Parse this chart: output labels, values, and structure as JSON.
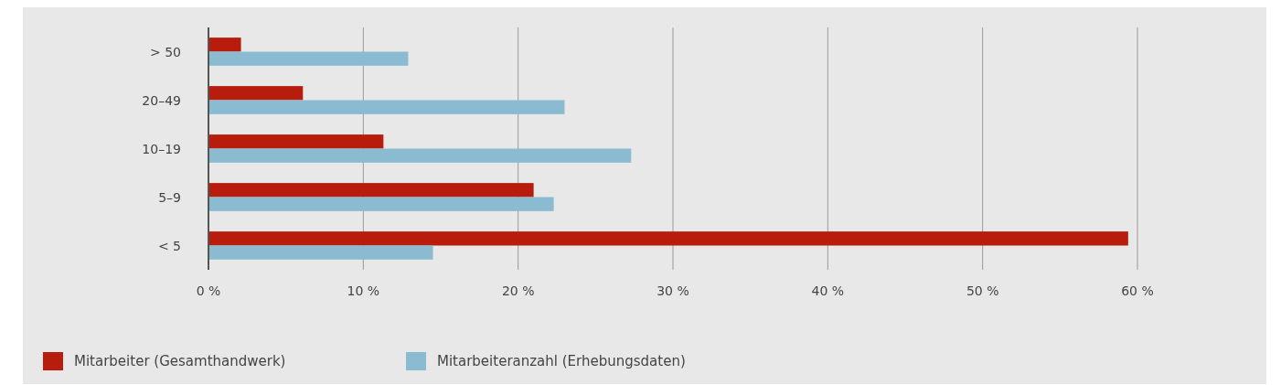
{
  "chart_data": {
    "type": "bar",
    "orientation": "horizontal",
    "categories": [
      "> 50",
      "20–49",
      "10–19",
      "5–9",
      "< 5"
    ],
    "series": [
      {
        "name": "Mitarbeiter (Gesamthandwerk)",
        "color": "#b71c0c",
        "values": [
          2.1,
          6.1,
          11.3,
          21.0,
          59.4
        ]
      },
      {
        "name": "Mitarbeiteranzahl (Erhebungsdaten)",
        "color": "#8bbbd0",
        "values": [
          12.9,
          23.0,
          27.3,
          22.3,
          14.5
        ]
      }
    ],
    "xlim": [
      0,
      60
    ],
    "xticks": [
      {
        "value": 0,
        "label": "0 %"
      },
      {
        "value": 10,
        "label": "10 %"
      },
      {
        "value": 20,
        "label": "20 %"
      },
      {
        "value": 30,
        "label": "30 %"
      },
      {
        "value": 40,
        "label": "40 %"
      },
      {
        "value": 50,
        "label": "50 %"
      },
      {
        "value": 60,
        "label": "60 %"
      }
    ],
    "grid": "x",
    "legend": "bottom left"
  }
}
